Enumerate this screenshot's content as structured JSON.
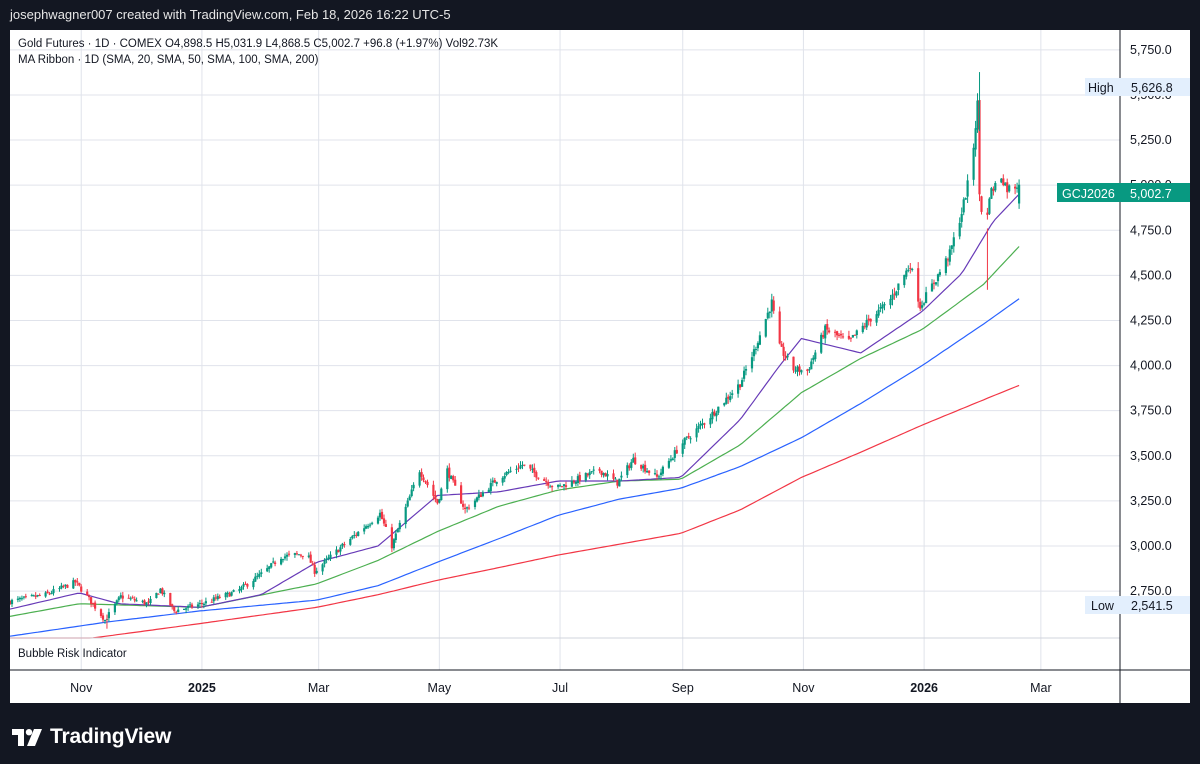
{
  "header": {
    "attribution": "josephwagner007 created with TradingView.com, Feb 18, 2026 16:22 UTC-5"
  },
  "legend": {
    "line1": "Gold Futures · 1D · COMEX  O4,898.5  H5,031.9  L4,868.5  C5,002.7  +96.8 (+1.97%)  Vol92.73K",
    "line2": "MA Ribbon · 1D (SMA, 20, SMA, 50, SMA, 100, SMA, 200)"
  },
  "indicator_pane": {
    "label": "Bubble Risk Indicator"
  },
  "price_tags": {
    "high_label": "High",
    "high_value": "5,626.8",
    "low_label": "Low",
    "low_value": "2,541.5",
    "symbol": "GCJ2026",
    "last_value": "5,002.7"
  },
  "footer": {
    "logo_text": "TradingView",
    "logo_icon": "tradingview-logo-icon"
  },
  "colors": {
    "up": "#089981",
    "down": "#f23645",
    "sma20": "#673ab7",
    "sma50": "#4caf50",
    "sma100": "#2962ff",
    "sma200": "#f23645",
    "last_tag": "#089981"
  },
  "chart_data": {
    "type": "candlestick",
    "title": "Gold Futures · 1D · COMEX",
    "y_ticks": [
      "2,750.0",
      "3,000.0",
      "3,250.0",
      "3,500.0",
      "3,750.0",
      "4,000.0",
      "4,250.0",
      "4,500.0",
      "4,750.0",
      "5,000.0",
      "5,250.0",
      "5,500.0",
      "5,750.0"
    ],
    "y_tick_values": [
      2750,
      3000,
      3250,
      3500,
      3750,
      4000,
      4250,
      4500,
      4750,
      5000,
      5250,
      5500,
      5750
    ],
    "x_ticks": [
      {
        "label": "Nov",
        "date": "2024-11-01",
        "bold": false
      },
      {
        "label": "2025",
        "date": "2025-01-01",
        "bold": true
      },
      {
        "label": "Mar",
        "date": "2025-03-01",
        "bold": false
      },
      {
        "label": "May",
        "date": "2025-05-01",
        "bold": false
      },
      {
        "label": "Jul",
        "date": "2025-07-01",
        "bold": false
      },
      {
        "label": "Sep",
        "date": "2025-09-01",
        "bold": false
      },
      {
        "label": "Nov",
        "date": "2025-11-01",
        "bold": false
      },
      {
        "label": "2026",
        "date": "2026-01-01",
        "bold": true
      },
      {
        "label": "Mar",
        "date": "2026-03-01",
        "bold": false
      }
    ],
    "ylim": [
      2490,
      5860
    ],
    "xlim": [
      "2024-09-26",
      "2026-04-10"
    ],
    "price_path": [
      {
        "date": "2024-09-26",
        "price": 2690
      },
      {
        "date": "2024-10-15",
        "price": 2730
      },
      {
        "date": "2024-10-30",
        "price": 2800
      },
      {
        "date": "2024-11-05",
        "price": 2720
      },
      {
        "date": "2024-11-14",
        "price": 2590
      },
      {
        "date": "2024-11-22",
        "price": 2720
      },
      {
        "date": "2024-12-06",
        "price": 2680
      },
      {
        "date": "2024-12-12",
        "price": 2760
      },
      {
        "date": "2024-12-19",
        "price": 2640
      },
      {
        "date": "2025-01-02",
        "price": 2680
      },
      {
        "date": "2025-01-20",
        "price": 2750
      },
      {
        "date": "2025-02-03",
        "price": 2860
      },
      {
        "date": "2025-02-11",
        "price": 2940
      },
      {
        "date": "2025-02-24",
        "price": 2960
      },
      {
        "date": "2025-02-28",
        "price": 2860
      },
      {
        "date": "2025-03-14",
        "price": 3000
      },
      {
        "date": "2025-04-02",
        "price": 3180
      },
      {
        "date": "2025-04-08",
        "price": 3000
      },
      {
        "date": "2025-04-22",
        "price": 3420
      },
      {
        "date": "2025-05-01",
        "price": 3240
      },
      {
        "date": "2025-05-06",
        "price": 3420
      },
      {
        "date": "2025-05-15",
        "price": 3200
      },
      {
        "date": "2025-06-01",
        "price": 3380
      },
      {
        "date": "2025-06-13",
        "price": 3450
      },
      {
        "date": "2025-06-30",
        "price": 3320
      },
      {
        "date": "2025-07-22",
        "price": 3420
      },
      {
        "date": "2025-07-31",
        "price": 3350
      },
      {
        "date": "2025-08-08",
        "price": 3480
      },
      {
        "date": "2025-08-20",
        "price": 3380
      },
      {
        "date": "2025-09-01",
        "price": 3560
      },
      {
        "date": "2025-09-16",
        "price": 3720
      },
      {
        "date": "2025-10-01",
        "price": 3900
      },
      {
        "date": "2025-10-08",
        "price": 4080
      },
      {
        "date": "2025-10-17",
        "price": 4350
      },
      {
        "date": "2025-10-21",
        "price": 4100
      },
      {
        "date": "2025-10-28",
        "price": 3980
      },
      {
        "date": "2025-11-04",
        "price": 3970
      },
      {
        "date": "2025-11-13",
        "price": 4200
      },
      {
        "date": "2025-11-25",
        "price": 4130
      },
      {
        "date": "2025-12-05",
        "price": 4250
      },
      {
        "date": "2025-12-15",
        "price": 4350
      },
      {
        "date": "2025-12-26",
        "price": 4560
      },
      {
        "date": "2025-12-31",
        "price": 4330
      },
      {
        "date": "2026-01-08",
        "price": 4480
      },
      {
        "date": "2026-01-15",
        "price": 4620
      },
      {
        "date": "2026-01-21",
        "price": 4850
      },
      {
        "date": "2026-01-26",
        "price": 5100
      },
      {
        "date": "2026-01-29",
        "price": 5450
      },
      {
        "date": "2026-01-30",
        "price": 4950
      },
      {
        "date": "2026-02-02",
        "price": 4700
      },
      {
        "date": "2026-02-04",
        "price": 4950
      },
      {
        "date": "2026-02-10",
        "price": 5050
      },
      {
        "date": "2026-02-13",
        "price": 4980
      },
      {
        "date": "2026-02-18",
        "price": 5002.7
      }
    ],
    "sma20": [
      {
        "date": "2024-09-26",
        "price": 2650
      },
      {
        "date": "2024-10-31",
        "price": 2740
      },
      {
        "date": "2024-11-20",
        "price": 2680
      },
      {
        "date": "2024-12-31",
        "price": 2660
      },
      {
        "date": "2025-01-31",
        "price": 2730
      },
      {
        "date": "2025-02-28",
        "price": 2910
      },
      {
        "date": "2025-03-31",
        "price": 3000
      },
      {
        "date": "2025-04-30",
        "price": 3280
      },
      {
        "date": "2025-05-31",
        "price": 3300
      },
      {
        "date": "2025-06-30",
        "price": 3360
      },
      {
        "date": "2025-07-31",
        "price": 3360
      },
      {
        "date": "2025-08-31",
        "price": 3380
      },
      {
        "date": "2025-09-30",
        "price": 3700
      },
      {
        "date": "2025-10-20",
        "price": 4000
      },
      {
        "date": "2025-10-31",
        "price": 4150
      },
      {
        "date": "2025-11-30",
        "price": 4070
      },
      {
        "date": "2025-12-31",
        "price": 4300
      },
      {
        "date": "2026-01-20",
        "price": 4510
      },
      {
        "date": "2026-02-05",
        "price": 4800
      },
      {
        "date": "2026-02-18",
        "price": 4950
      }
    ],
    "sma50": [
      {
        "date": "2024-09-26",
        "price": 2610
      },
      {
        "date": "2024-10-31",
        "price": 2680
      },
      {
        "date": "2024-12-31",
        "price": 2660
      },
      {
        "date": "2025-02-28",
        "price": 2790
      },
      {
        "date": "2025-03-31",
        "price": 2920
      },
      {
        "date": "2025-04-30",
        "price": 3080
      },
      {
        "date": "2025-05-31",
        "price": 3220
      },
      {
        "date": "2025-06-30",
        "price": 3310
      },
      {
        "date": "2025-07-31",
        "price": 3360
      },
      {
        "date": "2025-08-31",
        "price": 3370
      },
      {
        "date": "2025-09-30",
        "price": 3560
      },
      {
        "date": "2025-10-31",
        "price": 3850
      },
      {
        "date": "2025-11-30",
        "price": 4040
      },
      {
        "date": "2025-12-31",
        "price": 4200
      },
      {
        "date": "2026-01-31",
        "price": 4450
      },
      {
        "date": "2026-02-18",
        "price": 4660
      }
    ],
    "sma100": [
      {
        "date": "2024-09-26",
        "price": 2500
      },
      {
        "date": "2024-11-15",
        "price": 2580
      },
      {
        "date": "2024-12-31",
        "price": 2640
      },
      {
        "date": "2025-02-28",
        "price": 2700
      },
      {
        "date": "2025-03-31",
        "price": 2780
      },
      {
        "date": "2025-04-30",
        "price": 2910
      },
      {
        "date": "2025-05-31",
        "price": 3040
      },
      {
        "date": "2025-06-30",
        "price": 3170
      },
      {
        "date": "2025-07-31",
        "price": 3260
      },
      {
        "date": "2025-08-31",
        "price": 3320
      },
      {
        "date": "2025-09-30",
        "price": 3440
      },
      {
        "date": "2025-10-31",
        "price": 3600
      },
      {
        "date": "2025-11-30",
        "price": 3790
      },
      {
        "date": "2025-12-31",
        "price": 4000
      },
      {
        "date": "2026-01-31",
        "price": 4230
      },
      {
        "date": "2026-02-18",
        "price": 4370
      }
    ],
    "sma200": [
      {
        "date": "2024-09-26",
        "price": 2420
      },
      {
        "date": "2024-10-31",
        "price": 2480
      },
      {
        "date": "2024-12-31",
        "price": 2570
      },
      {
        "date": "2025-02-28",
        "price": 2660
      },
      {
        "date": "2025-03-31",
        "price": 2730
      },
      {
        "date": "2025-04-30",
        "price": 2810
      },
      {
        "date": "2025-05-31",
        "price": 2880
      },
      {
        "date": "2025-06-30",
        "price": 2950
      },
      {
        "date": "2025-07-31",
        "price": 3010
      },
      {
        "date": "2025-08-31",
        "price": 3070
      },
      {
        "date": "2025-09-30",
        "price": 3200
      },
      {
        "date": "2025-10-31",
        "price": 3380
      },
      {
        "date": "2025-11-30",
        "price": 3520
      },
      {
        "date": "2025-12-31",
        "price": 3670
      },
      {
        "date": "2026-01-31",
        "price": 3810
      },
      {
        "date": "2026-02-18",
        "price": 3890
      }
    ],
    "high": 5626.8,
    "low": 2541.5,
    "last": 5002.7,
    "legend": "MA Ribbon · 1D (SMA, 20, SMA, 50, SMA, 100, SMA, 200)",
    "grid": true
  }
}
